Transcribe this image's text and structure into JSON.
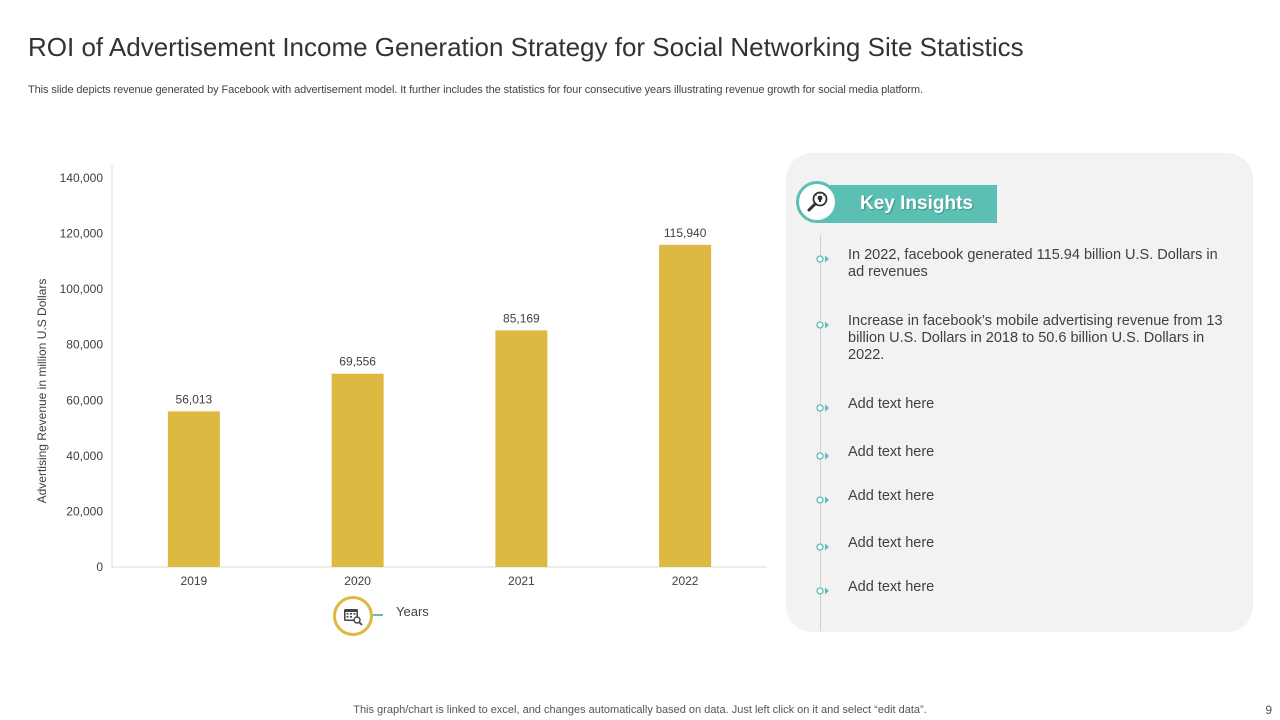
{
  "slide": {
    "title": "ROI of Advertisement Income Generation Strategy for Social Networking Site Statistics",
    "subtitle": "This slide depicts revenue generated by Facebook with advertisement model. It further includes the statistics for four consecutive years illustrating revenue growth for social media platform.",
    "footer": "This graph/chart is linked to excel, and changes automatically based on data. Just left click on it and select “edit data”.",
    "page_number": "9"
  },
  "chart_data": {
    "type": "bar",
    "categories": [
      "2019",
      "2020",
      "2021",
      "2022"
    ],
    "values": [
      56013,
      69556,
      85169,
      115940
    ],
    "value_labels": [
      "56,013",
      "69,556",
      "85,169",
      "115,940"
    ],
    "xlabel": "Years",
    "ylabel": "Advertising Revenue  in million U.S Dollars",
    "ylim": [
      0,
      140000
    ],
    "yticks": [
      0,
      20000,
      40000,
      60000,
      80000,
      100000,
      120000,
      140000
    ],
    "ytick_labels": [
      "0",
      "20,000",
      "40,000",
      "60,000",
      "80,000",
      "100,000",
      "120,000",
      "140,000"
    ],
    "bar_color": "#DDB942",
    "grid": false,
    "legend": "none"
  },
  "insights": {
    "heading": "Key Insights",
    "accent_color": "#5BBFB3",
    "items": [
      "In 2022, facebook generated 115.94 billion U.S. Dollars in ad revenues",
      "Increase in facebook’s mobile advertising revenue from 13 billion U.S. Dollars in 2018 to 50.6 billion U.S. Dollars in 2022.",
      "Add text here",
      "Add text here",
      "Add text here",
      "Add text here",
      "Add text here"
    ]
  },
  "icons": {
    "years": "calendar-search-icon",
    "insights": "magnifier-bulb-icon",
    "bullet": "ring-arrow-bullet-icon"
  }
}
